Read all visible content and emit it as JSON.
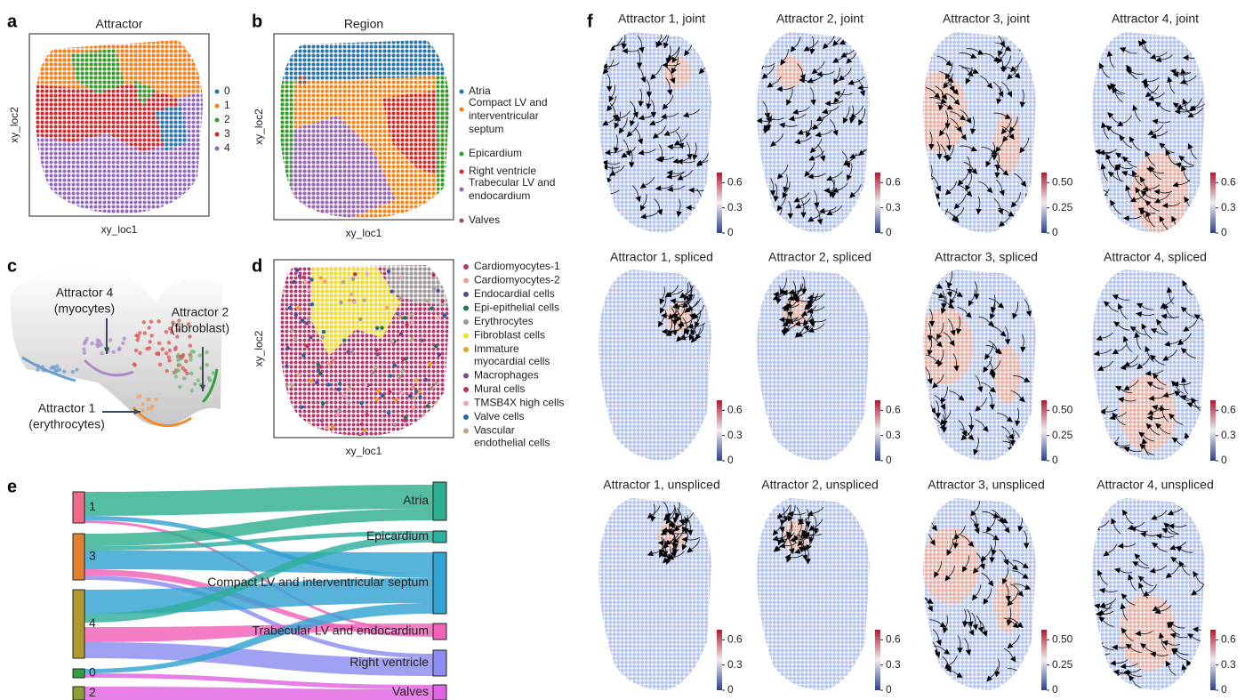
{
  "panels": {
    "a": {
      "label": "a",
      "title": "Attractor",
      "xlabel": "xy_loc1",
      "ylabel": "xy_loc2",
      "legend": [
        {
          "name": "0",
          "color": "#1f77b4"
        },
        {
          "name": "1",
          "color": "#ff7f0e"
        },
        {
          "name": "2",
          "color": "#2ca02c"
        },
        {
          "name": "3",
          "color": "#d62728"
        },
        {
          "name": "4",
          "color": "#9467bd"
        }
      ]
    },
    "b": {
      "label": "b",
      "title": "Region",
      "xlabel": "xy_loc1",
      "ylabel": "xy_loc2",
      "legend": [
        {
          "lines": [
            "Atria"
          ],
          "color": "#1f77b4"
        },
        {
          "lines": [
            "Compact LV and",
            "interventricular",
            "septum"
          ],
          "color": "#ff7f0e"
        },
        {
          "lines": [
            "Epicardium"
          ],
          "color": "#2ca02c"
        },
        {
          "lines": [
            "Right ventricle"
          ],
          "color": "#d62728"
        },
        {
          "lines": [
            "Trabecular LV and",
            "endocardium"
          ],
          "color": "#9467bd"
        },
        {
          "lines": [
            "Valves"
          ],
          "color": "#8c564b"
        }
      ]
    },
    "c": {
      "label": "c",
      "annotations": [
        [
          "Attractor 4",
          "(myocytes)"
        ],
        [
          "Attractor 2",
          "(fibroblast)"
        ],
        [
          "Attractor 1",
          "(erythrocytes)"
        ]
      ]
    },
    "d": {
      "label": "d",
      "xlabel": "xy_loc1",
      "ylabel": "xy_loc2",
      "legend": [
        {
          "lines": [
            "Cardiomyocytes-1"
          ],
          "color": "#b23a6c"
        },
        {
          "lines": [
            "Cardiomyocytes-2"
          ],
          "color": "#f2a08c"
        },
        {
          "lines": [
            "Endocardial cells"
          ],
          "color": "#4b4b9b"
        },
        {
          "lines": [
            "Epi-epithelial cells"
          ],
          "color": "#1b7a4c"
        },
        {
          "lines": [
            "Erythrocytes"
          ],
          "color": "#999999"
        },
        {
          "lines": [
            "Fibroblast cells"
          ],
          "color": "#efe020"
        },
        {
          "lines": [
            "Immature",
            "myocardial cells"
          ],
          "color": "#f0a020"
        },
        {
          "lines": [
            "Macrophages"
          ],
          "color": "#7b4b8c"
        },
        {
          "lines": [
            "Mural cells"
          ],
          "color": "#c0305a"
        },
        {
          "lines": [
            "TMSB4X high cells"
          ],
          "color": "#f0a0c0"
        },
        {
          "lines": [
            "Valve cells"
          ],
          "color": "#1b6aab"
        },
        {
          "lines": [
            "Vascular",
            "endothelial cells"
          ],
          "color": "#b8a880"
        }
      ]
    },
    "e": {
      "label": "e",
      "left_nodes": [
        {
          "name": "1",
          "color": "#f06a8a"
        },
        {
          "name": "3",
          "color": "#e08030"
        },
        {
          "name": "4",
          "color": "#b09a30"
        },
        {
          "name": "0",
          "color": "#30a040"
        },
        {
          "name": "2",
          "color": "#8aa030"
        }
      ],
      "right_nodes": [
        {
          "name": "Atria",
          "color": "#2eae8e"
        },
        {
          "name": "Epicardium",
          "color": "#2eae9e"
        },
        {
          "name": "Compact LV and interventricular septum",
          "color": "#33a2d2"
        },
        {
          "name": "Trabecular LV and endocardium",
          "color": "#f062b8"
        },
        {
          "name": "Right ventricle",
          "color": "#8c8cf2"
        },
        {
          "name": "Valves",
          "color": "#e064e0"
        }
      ]
    },
    "f": {
      "label": "f",
      "plots": [
        {
          "title": "Attractor 1, joint",
          "colorbar": {
            "lim": [
              0,
              0.72
            ],
            "ticks": [
              0,
              0.3,
              0.6
            ]
          }
        },
        {
          "title": "Attractor 2, joint",
          "colorbar": {
            "lim": [
              0,
              0.72
            ],
            "ticks": [
              0,
              0.3,
              0.6
            ]
          }
        },
        {
          "title": "Attractor 3, joint",
          "colorbar": {
            "lim": [
              0,
              0.6
            ],
            "ticks": [
              0,
              0.25,
              {
                "value": 0.5,
                "label": "0.50"
              }
            ]
          }
        },
        {
          "title": "Attractor 4, joint",
          "colorbar": {
            "lim": [
              0,
              0.72
            ],
            "ticks": [
              0,
              0.3,
              0.6
            ]
          }
        },
        {
          "title": "Attractor 1, spliced",
          "colorbar": {
            "lim": [
              0,
              0.72
            ],
            "ticks": [
              0,
              0.3,
              0.6
            ]
          }
        },
        {
          "title": "Attractor 2, spliced",
          "colorbar": {
            "lim": [
              0,
              0.72
            ],
            "ticks": [
              0,
              0.3,
              0.6
            ]
          }
        },
        {
          "title": "Attractor 3, spliced",
          "colorbar": {
            "lim": [
              0,
              0.6
            ],
            "ticks": [
              0,
              0.25,
              {
                "value": 0.5,
                "label": "0.50"
              }
            ]
          }
        },
        {
          "title": "Attractor 4, spliced",
          "colorbar": {
            "lim": [
              0,
              0.72
            ],
            "ticks": [
              0,
              0.3,
              0.6
            ]
          }
        },
        {
          "title": "Attractor 1, unspliced",
          "colorbar": {
            "lim": [
              0,
              0.72
            ],
            "ticks": [
              0,
              0.3,
              0.6
            ]
          }
        },
        {
          "title": "Attractor 2, unspliced",
          "colorbar": {
            "lim": [
              0,
              0.72
            ],
            "ticks": [
              0,
              0.3,
              0.6
            ]
          }
        },
        {
          "title": "Attractor 3, unspliced",
          "colorbar": {
            "lim": [
              0,
              0.6
            ],
            "ticks": [
              0,
              0.25,
              {
                "value": 0.5,
                "label": "0.50"
              }
            ]
          }
        },
        {
          "title": "Attractor 4, unspliced",
          "colorbar": {
            "lim": [
              0,
              0.72
            ],
            "ticks": [
              0,
              0.3,
              0.6
            ]
          }
        }
      ]
    }
  }
}
